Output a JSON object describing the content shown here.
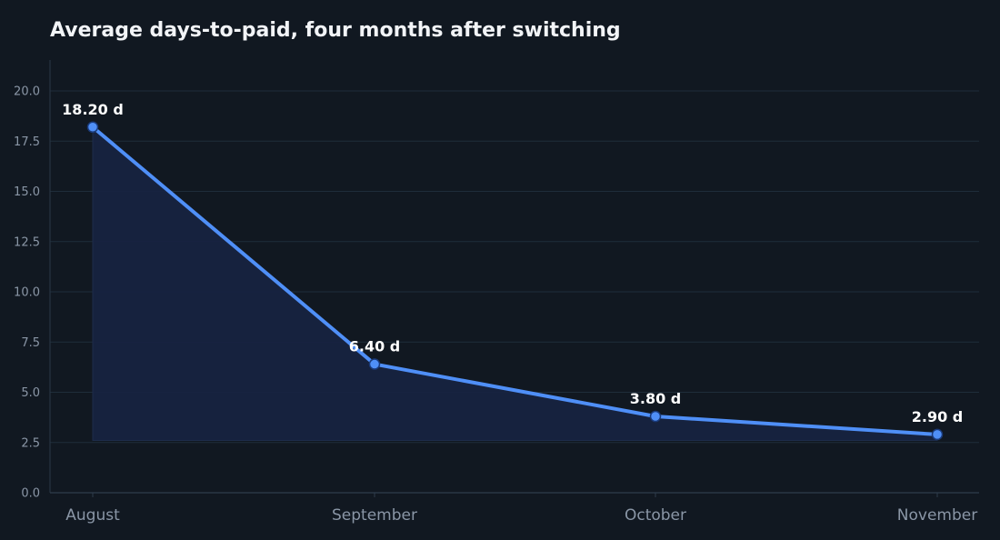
{
  "chart_data": {
    "type": "area",
    "title": "Average days-to-paid, four months after switching",
    "categories": [
      "August",
      "September",
      "October",
      "November"
    ],
    "series": [
      {
        "values": [
          18.2,
          6.4,
          3.8,
          2.9
        ],
        "labels": [
          "18.20 d",
          "6.40 d",
          "3.80 d",
          "2.90 d"
        ]
      }
    ],
    "y_ticks": [
      "0.0",
      "2.5",
      "5.0",
      "7.5",
      "10.0",
      "12.5",
      "15.0",
      "17.5",
      "20.0"
    ],
    "ylim": [
      0,
      21.2
    ],
    "area_baseline": 2.6,
    "grid": true,
    "colors": {
      "line": "#4f8ff7",
      "area": "#172340",
      "grid": "#1f2d3a",
      "background": "#111821"
    }
  }
}
